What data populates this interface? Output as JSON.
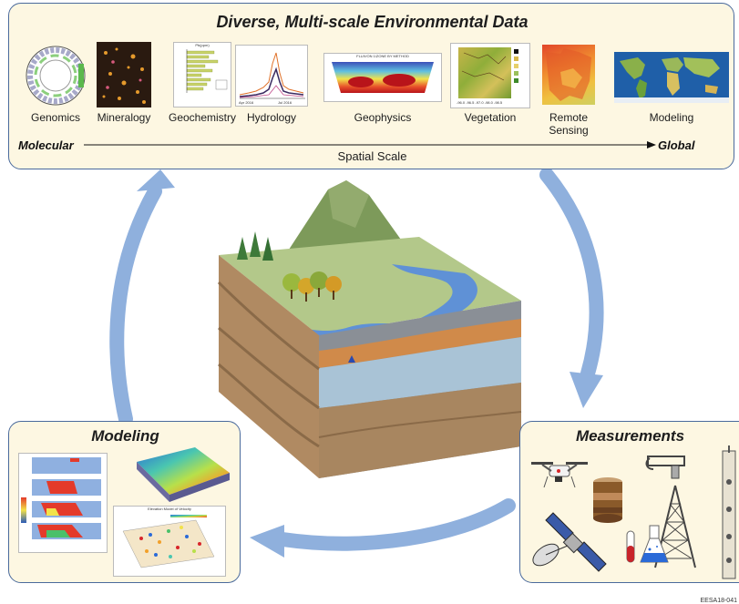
{
  "top": {
    "title": "Diverse, Multi-scale Environmental Data",
    "items": [
      "Genomics",
      "Mineralogy",
      "Geochemistry",
      "Hydrology",
      "Geophysics",
      "Vegetation",
      "Remote\nSensing",
      "Modeling"
    ],
    "scale_left": "Molecular",
    "scale_right": "Global",
    "scale_label": "Spatial Scale",
    "hydro_axis": [
      "Apr 2016",
      "Jul 2016"
    ],
    "geophys_title": "FLUX/ON 1/ZONE BY METHOD",
    "geochem_title": "Pb(ppm)",
    "veg_axis": [
      "-96.0",
      "-96.5",
      "-97.0",
      "-98.0",
      "-98.5"
    ],
    "veg_yaxis": [
      "37.5",
      "37.0",
      "36.5",
      "36.0",
      "35.5",
      "35.0",
      "34.5"
    ]
  },
  "modeling": {
    "title": "Modeling",
    "scatter_title": "Elevation Model of Velocity"
  },
  "measurements": {
    "title": "Measurements"
  },
  "footer": {
    "code": "EESA18-041"
  },
  "colors": {
    "panel_bg": "#fdf7e2",
    "panel_border": "#4a6a9c",
    "arrow": "#8fb0dd"
  }
}
